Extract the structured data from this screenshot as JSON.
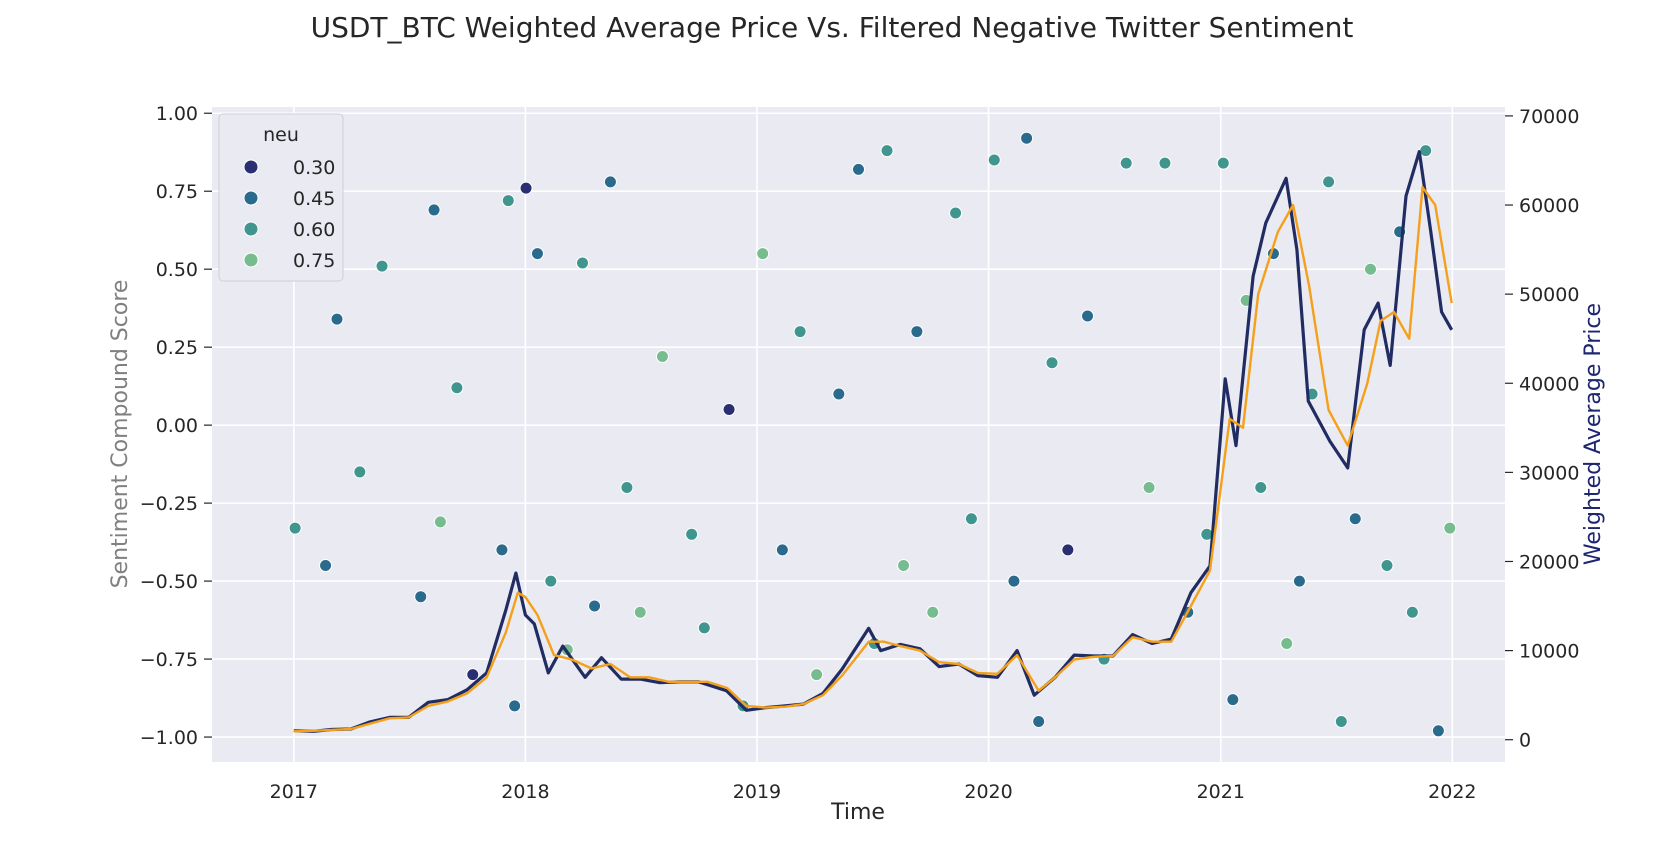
{
  "chart_data": {
    "type": "scatter",
    "title": "USDT_BTC Weighted Average Price Vs. Filtered Negative Twitter Sentiment",
    "xlabel": "Time",
    "ylabel": "Sentiment Compound Score",
    "y2label": "Weighted Average Price",
    "xlim": [
      "2016-08-25",
      "2022-03-25"
    ],
    "ylim": [
      -1.08,
      1.02
    ],
    "y2lim": [
      -2500,
      71000
    ],
    "x_ticks": [
      {
        "date": "2017-01-01",
        "label": "2017"
      },
      {
        "date": "2018-01-01",
        "label": "2018"
      },
      {
        "date": "2019-01-01",
        "label": "2019"
      },
      {
        "date": "2020-01-01",
        "label": "2020"
      },
      {
        "date": "2021-01-01",
        "label": "2021"
      },
      {
        "date": "2022-01-01",
        "label": "2022"
      }
    ],
    "y_ticks": [
      "1.00",
      "0.75",
      "0.50",
      "0.25",
      "0.00",
      "−0.25",
      "−0.50",
      "−0.75",
      "−1.00"
    ],
    "y_tick_values": [
      1.0,
      0.75,
      0.5,
      0.25,
      0.0,
      -0.25,
      -0.5,
      -0.75,
      -1.0
    ],
    "y2_ticks": [
      "70000",
      "60000",
      "50000",
      "40000",
      "30000",
      "20000",
      "10000",
      "0"
    ],
    "y2_tick_values": [
      70000,
      60000,
      50000,
      40000,
      30000,
      20000,
      10000,
      0
    ],
    "grid": true,
    "legend": {
      "title": "neu",
      "placement": "top-left",
      "entries": [
        {
          "label": "0.30",
          "value": 0.3,
          "color": "#2a2f72"
        },
        {
          "label": "0.45",
          "value": 0.45,
          "color": "#2a6a8c"
        },
        {
          "label": "0.60",
          "value": 0.6,
          "color": "#40968f"
        },
        {
          "label": "0.75",
          "value": 0.75,
          "color": "#76bc8f"
        }
      ]
    },
    "colors": {
      "plot_bg": "#eaeaf2",
      "grid": "#ffffff",
      "price_line": "#212c63",
      "moving_avg_line": "#f5a01a",
      "left_label": "#808080",
      "right_label": "#1d2670"
    },
    "series": [
      {
        "kind": "line",
        "axis": "right",
        "role": "weighted average price",
        "x": [
          "2017-01-01",
          "2017-02-01",
          "2017-03-01",
          "2017-04-01",
          "2017-05-01",
          "2017-06-01",
          "2017-07-01",
          "2017-08-01",
          "2017-09-01",
          "2017-10-01",
          "2017-11-01",
          "2017-12-01",
          "2017-12-17",
          "2018-01-01",
          "2018-01-15",
          "2018-02-06",
          "2018-03-01",
          "2018-04-05",
          "2018-05-01",
          "2018-06-01",
          "2018-07-01",
          "2018-08-01",
          "2018-09-01",
          "2018-10-01",
          "2018-11-14",
          "2018-12-15",
          "2019-01-15",
          "2019-02-15",
          "2019-03-15",
          "2019-04-15",
          "2019-05-15",
          "2019-06-26",
          "2019-07-15",
          "2019-08-15",
          "2019-09-15",
          "2019-10-15",
          "2019-11-15",
          "2019-12-15",
          "2020-01-15",
          "2020-02-15",
          "2020-03-13",
          "2020-04-15",
          "2020-05-15",
          "2020-06-15",
          "2020-07-15",
          "2020-08-15",
          "2020-09-15",
          "2020-10-15",
          "2020-11-15",
          "2020-12-15",
          "2021-01-08",
          "2021-01-25",
          "2021-02-21",
          "2021-03-13",
          "2021-04-14",
          "2021-05-01",
          "2021-05-19",
          "2021-06-22",
          "2021-07-20",
          "2021-08-15",
          "2021-09-06",
          "2021-09-25",
          "2021-10-20",
          "2021-11-10",
          "2021-11-28",
          "2021-12-15",
          "2021-12-31"
        ],
        "y": [
          1000,
          950,
          1150,
          1200,
          2000,
          2500,
          2500,
          4200,
          4500,
          5600,
          7500,
          14500,
          18700,
          14000,
          13000,
          7500,
          10500,
          7000,
          9200,
          6800,
          6800,
          6400,
          6500,
          6500,
          5500,
          3300,
          3600,
          3800,
          4000,
          5200,
          7900,
          12500,
          10000,
          10700,
          10200,
          8200,
          8500,
          7200,
          7000,
          10000,
          5000,
          7000,
          9500,
          9400,
          9400,
          11800,
          10800,
          11300,
          16500,
          19500,
          40500,
          33000,
          52000,
          58000,
          63000,
          55000,
          38000,
          33500,
          30500,
          46000,
          49000,
          42000,
          61000,
          66000,
          57000,
          48000,
          46000
        ]
      },
      {
        "kind": "line",
        "axis": "right",
        "role": "moving average",
        "x": [
          "2017-01-01",
          "2017-02-01",
          "2017-03-01",
          "2017-04-01",
          "2017-05-01",
          "2017-06-01",
          "2017-07-01",
          "2017-08-01",
          "2017-09-01",
          "2017-10-01",
          "2017-11-01",
          "2017-12-01",
          "2017-12-20",
          "2018-01-01",
          "2018-01-20",
          "2018-02-15",
          "2018-03-15",
          "2018-04-15",
          "2018-05-15",
          "2018-06-15",
          "2018-07-15",
          "2018-08-15",
          "2018-09-15",
          "2018-10-15",
          "2018-11-15",
          "2018-12-15",
          "2019-01-15",
          "2019-02-15",
          "2019-03-15",
          "2019-04-15",
          "2019-05-15",
          "2019-06-26",
          "2019-07-20",
          "2019-08-15",
          "2019-09-15",
          "2019-10-15",
          "2019-11-15",
          "2019-12-15",
          "2020-01-15",
          "2020-02-15",
          "2020-03-20",
          "2020-04-15",
          "2020-05-15",
          "2020-06-15",
          "2020-07-15",
          "2020-08-15",
          "2020-09-15",
          "2020-10-15",
          "2020-11-15",
          "2020-12-15",
          "2021-01-15",
          "2021-02-05",
          "2021-03-01",
          "2021-04-01",
          "2021-04-25",
          "2021-05-20",
          "2021-06-20",
          "2021-07-20",
          "2021-08-20",
          "2021-09-10",
          "2021-10-01",
          "2021-10-25",
          "2021-11-15",
          "2021-12-05",
          "2021-12-31"
        ],
        "y": [
          950,
          1000,
          1100,
          1200,
          1800,
          2400,
          2500,
          3800,
          4300,
          5200,
          7000,
          12000,
          16500,
          16000,
          14000,
          9500,
          9000,
          8000,
          8500,
          7000,
          7000,
          6500,
          6500,
          6500,
          5800,
          3800,
          3600,
          3700,
          4000,
          5000,
          7200,
          11000,
          11000,
          10500,
          10000,
          8700,
          8500,
          7500,
          7400,
          9500,
          5500,
          7000,
          9000,
          9300,
          9400,
          11500,
          11000,
          11000,
          15000,
          19000,
          36000,
          35000,
          50000,
          57000,
          60000,
          51000,
          37000,
          33000,
          40000,
          47000,
          48000,
          45000,
          62000,
          60000,
          49000
        ]
      },
      {
        "kind": "scatter",
        "axis": "left",
        "role": "sentiment points",
        "x": [
          "2017-01-03",
          "2017-02-20",
          "2017-03-10",
          "2017-04-15",
          "2017-05-20",
          "2017-07-20",
          "2017-08-10",
          "2017-08-20",
          "2017-09-15",
          "2017-10-10",
          "2017-11-25",
          "2017-12-05",
          "2017-12-15",
          "2018-01-02",
          "2018-01-20",
          "2018-02-10",
          "2018-03-08",
          "2018-04-01",
          "2018-04-20",
          "2018-05-15",
          "2018-06-10",
          "2018-07-01",
          "2018-08-05",
          "2018-09-20",
          "2018-10-10",
          "2018-11-18",
          "2018-12-10",
          "2019-01-10",
          "2019-02-10",
          "2019-03-10",
          "2019-04-05",
          "2019-05-10",
          "2019-06-10",
          "2019-07-05",
          "2019-07-25",
          "2019-08-20",
          "2019-09-10",
          "2019-10-05",
          "2019-11-10",
          "2019-12-05",
          "2020-01-10",
          "2020-02-10",
          "2020-03-01",
          "2020-03-20",
          "2020-04-10",
          "2020-05-05",
          "2020-06-05",
          "2020-07-01",
          "2020-08-05",
          "2020-09-10",
          "2020-10-05",
          "2020-11-10",
          "2020-12-10",
          "2021-01-05",
          "2021-01-20",
          "2021-02-10",
          "2021-03-05",
          "2021-03-25",
          "2021-04-15",
          "2021-05-05",
          "2021-05-25",
          "2021-06-20",
          "2021-07-10",
          "2021-08-01",
          "2021-08-25",
          "2021-09-20",
          "2021-10-10",
          "2021-10-30",
          "2021-11-20",
          "2021-12-10",
          "2021-12-28"
        ],
        "y": [
          -0.33,
          -0.45,
          0.34,
          -0.15,
          0.51,
          -0.55,
          0.69,
          -0.31,
          0.12,
          -0.8,
          -0.4,
          0.72,
          -0.9,
          0.76,
          0.55,
          -0.5,
          -0.72,
          0.52,
          -0.58,
          0.78,
          -0.2,
          -0.6,
          0.22,
          -0.35,
          -0.65,
          0.05,
          -0.9,
          0.55,
          -0.4,
          0.3,
          -0.8,
          0.1,
          0.82,
          -0.7,
          0.88,
          -0.45,
          0.3,
          -0.6,
          0.68,
          -0.3,
          0.85,
          -0.5,
          0.92,
          -0.95,
          0.2,
          -0.4,
          0.35,
          -0.75,
          0.84,
          -0.2,
          0.84,
          -0.6,
          -0.35,
          0.84,
          -0.88,
          0.4,
          -0.2,
          0.55,
          -0.7,
          -0.5,
          0.1,
          0.78,
          -0.95,
          -0.3,
          0.5,
          -0.45,
          0.62,
          -0.6,
          0.88,
          -0.98,
          -0.33
        ],
        "neu": [
          0.6,
          0.45,
          0.45,
          0.6,
          0.6,
          0.45,
          0.45,
          0.75,
          0.6,
          0.3,
          0.45,
          0.6,
          0.45,
          0.3,
          0.45,
          0.6,
          0.75,
          0.6,
          0.45,
          0.45,
          0.6,
          0.75,
          0.75,
          0.6,
          0.6,
          0.3,
          0.6,
          0.75,
          0.45,
          0.6,
          0.75,
          0.45,
          0.45,
          0.6,
          0.6,
          0.75,
          0.45,
          0.75,
          0.6,
          0.6,
          0.6,
          0.45,
          0.45,
          0.45,
          0.6,
          0.3,
          0.45,
          0.6,
          0.6,
          0.75,
          0.6,
          0.45,
          0.6,
          0.6,
          0.45,
          0.75,
          0.6,
          0.45,
          0.75,
          0.45,
          0.6,
          0.6,
          0.6,
          0.45,
          0.75,
          0.6,
          0.45,
          0.6,
          0.6,
          0.45,
          0.75
        ]
      }
    ]
  }
}
